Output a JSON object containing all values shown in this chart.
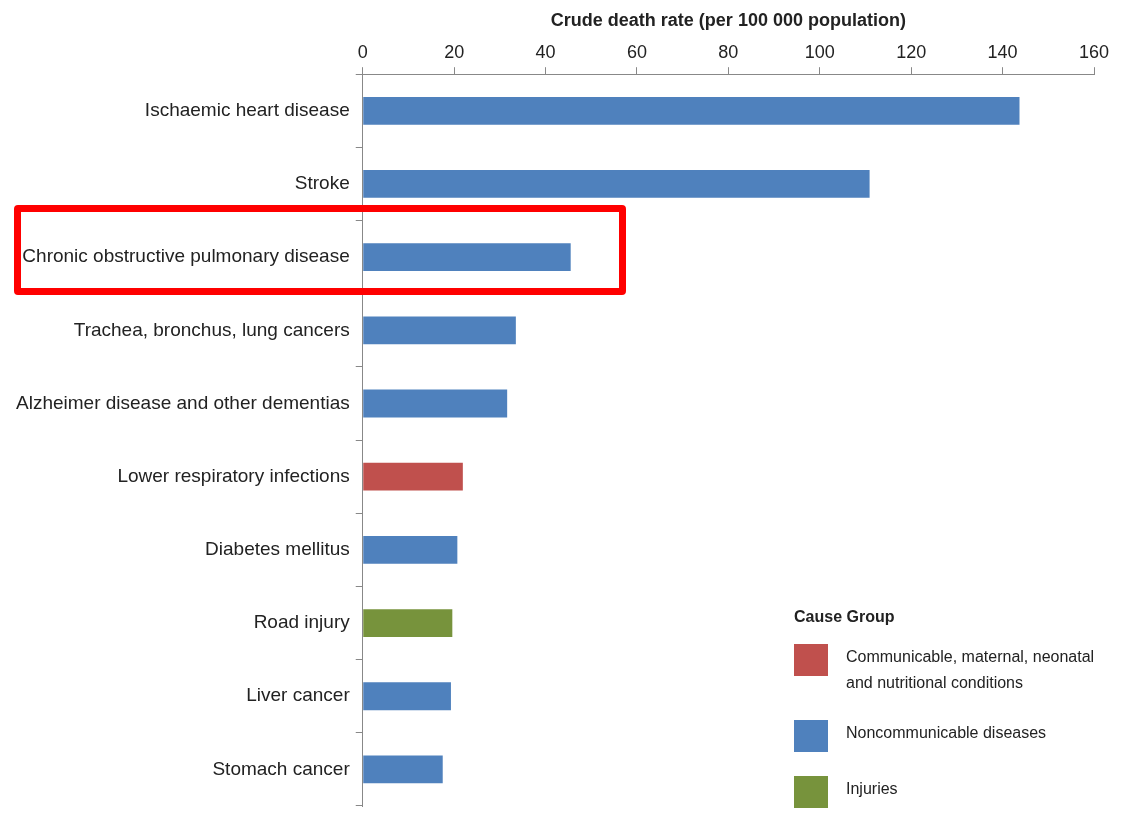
{
  "chart_data": {
    "type": "bar",
    "orientation": "horizontal",
    "stacked": true,
    "xlabel": "Crude death rate (per 100 000 population)",
    "categories": [
      "Ischaemic heart disease",
      "Stroke",
      "Chronic obstructive pulmonary disease",
      "Trachea, bronchus, lung cancers",
      "Alzheimer disease and other dementias",
      "Lower respiratory infections",
      "Diabetes mellitus",
      "Road injury",
      "Liver cancer",
      "Stomach cancer"
    ],
    "series": [
      {
        "name": "Communicable, maternal, neonatal and nutritional conditions",
        "color": "#c0504d",
        "values": [
          null,
          null,
          null,
          null,
          null,
          21.9,
          null,
          null,
          null,
          null
        ]
      },
      {
        "name": "Noncommunicable diseases",
        "color": "#4f81bd",
        "values": [
          143.7,
          110.9,
          45.5,
          33.5,
          31.6,
          null,
          20.7,
          null,
          19.3,
          17.5
        ]
      },
      {
        "name": "Injuries",
        "color": "#77933c",
        "values": [
          null,
          null,
          null,
          null,
          null,
          null,
          null,
          19.6,
          null,
          null
        ]
      }
    ],
    "legend_title": "Cause Group",
    "legend": "bottom right",
    "xlim": [
      0,
      160
    ],
    "xticks": [
      0,
      20,
      40,
      60,
      80,
      100,
      120,
      140,
      160
    ]
  }
}
